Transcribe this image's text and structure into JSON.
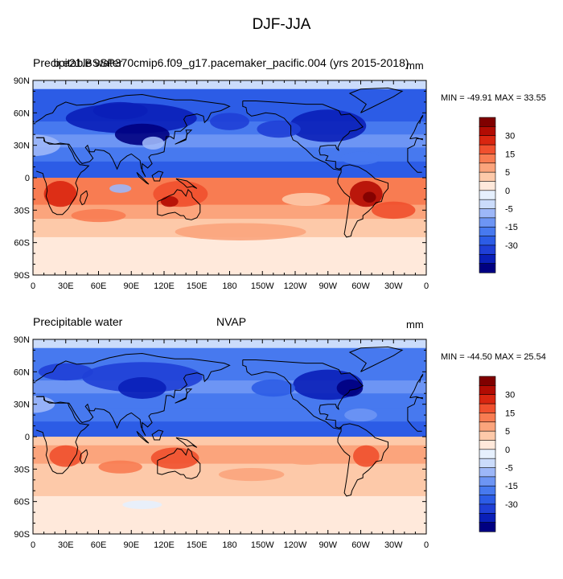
{
  "figure": {
    "title": "DJF-JJA"
  },
  "panels": [
    {
      "left_title": "Precipitable water",
      "center_title": "b.e21.BSSP370cmip6.f09_g17.pacemaker_pacific.004 (yrs 2015-2018)",
      "units": "mm",
      "stats": "MIN = -49.91 MAX =  33.55"
    },
    {
      "left_title": "Precipitable water",
      "center_title": "NVAP",
      "units": "mm",
      "stats": "MIN = -44.50 MAX =  25.54"
    }
  ],
  "chart_data": {
    "type": "heatmap",
    "x_ticks": [
      "0",
      "30E",
      "60E",
      "90E",
      "120E",
      "150E",
      "180",
      "150W",
      "120W",
      "90W",
      "60W",
      "30W",
      "0"
    ],
    "y_ticks": [
      "90N",
      "60N",
      "30N",
      "0",
      "30S",
      "60S",
      "90S"
    ],
    "xlim": [
      0,
      360
    ],
    "ylim": [
      -90,
      90
    ],
    "colorbar_levels": [
      -35,
      -30,
      -25,
      -20,
      -15,
      -10,
      -5,
      -2,
      2,
      5,
      10,
      15,
      20,
      25,
      30,
      35
    ],
    "colorbar_labels": [
      "30",
      "15",
      "5",
      "0",
      "-5",
      "-15",
      "-30"
    ],
    "colors": [
      "#000081",
      "#0a1fb8",
      "#1f3fd6",
      "#2c5ce6",
      "#4779ef",
      "#6d95f4",
      "#9db7f8",
      "#cbdcfb",
      "#e6f0fd",
      "#ffe9db",
      "#fdc9a9",
      "#fba47c",
      "#f87c52",
      "#f0502e",
      "#d92610",
      "#b20c03",
      "#800000"
    ]
  }
}
